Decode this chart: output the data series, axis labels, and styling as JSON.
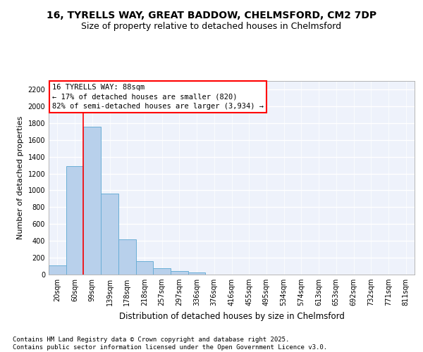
{
  "title_line1": "16, TYRELLS WAY, GREAT BADDOW, CHELMSFORD, CM2 7DP",
  "title_line2": "Size of property relative to detached houses in Chelmsford",
  "xlabel": "Distribution of detached houses by size in Chelmsford",
  "ylabel": "Number of detached properties",
  "categories": [
    "20sqm",
    "60sqm",
    "99sqm",
    "139sqm",
    "178sqm",
    "218sqm",
    "257sqm",
    "297sqm",
    "336sqm",
    "376sqm",
    "416sqm",
    "455sqm",
    "495sqm",
    "534sqm",
    "574sqm",
    "613sqm",
    "653sqm",
    "692sqm",
    "732sqm",
    "771sqm",
    "811sqm"
  ],
  "bar_values": [
    110,
    1290,
    1760,
    960,
    420,
    155,
    75,
    45,
    25,
    0,
    0,
    0,
    0,
    0,
    0,
    0,
    0,
    0,
    0,
    0,
    0
  ],
  "bar_color": "#b8d0eb",
  "bar_edge_color": "#6aaed6",
  "ylim": [
    0,
    2300
  ],
  "yticks": [
    0,
    200,
    400,
    600,
    800,
    1000,
    1200,
    1400,
    1600,
    1800,
    2000,
    2200
  ],
  "vline_x": 1.5,
  "vline_color": "red",
  "annotation_box_text": "16 TYRELLS WAY: 88sqm\n← 17% of detached houses are smaller (820)\n82% of semi-detached houses are larger (3,934) →",
  "annotation_box_color": "red",
  "footer_text": "Contains HM Land Registry data © Crown copyright and database right 2025.\nContains public sector information licensed under the Open Government Licence v3.0.",
  "background_color": "#eef2fb",
  "grid_color": "#ffffff",
  "title_fontsize": 10,
  "subtitle_fontsize": 9,
  "tick_fontsize": 7,
  "ylabel_fontsize": 8,
  "xlabel_fontsize": 8.5,
  "footer_fontsize": 6.5,
  "annot_fontsize": 7.5
}
